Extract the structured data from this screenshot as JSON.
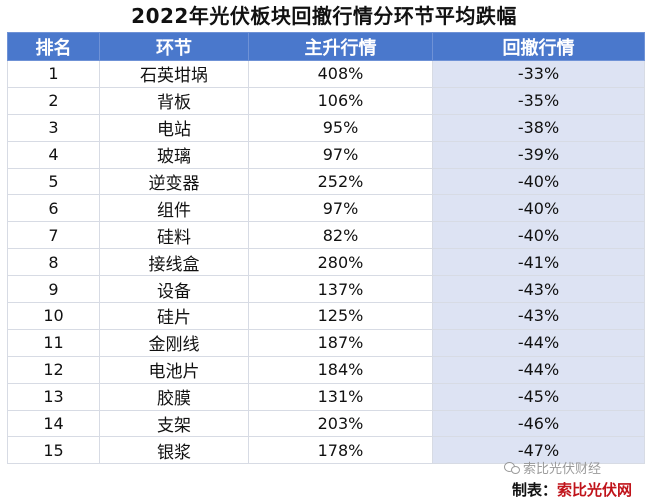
{
  "title": "2022年光伏板块回撤行情分环节平均跌幅",
  "table": {
    "headers": [
      "排名",
      "环节",
      "主升行情",
      "回撤行情"
    ],
    "rows": [
      {
        "rank": "1",
        "segment": "石英坩埚",
        "rise": "408%",
        "drawdown": "-33%"
      },
      {
        "rank": "2",
        "segment": "背板",
        "rise": "106%",
        "drawdown": "-35%"
      },
      {
        "rank": "3",
        "segment": "电站",
        "rise": "95%",
        "drawdown": "-38%"
      },
      {
        "rank": "4",
        "segment": "玻璃",
        "rise": "97%",
        "drawdown": "-39%"
      },
      {
        "rank": "5",
        "segment": "逆变器",
        "rise": "252%",
        "drawdown": "-40%"
      },
      {
        "rank": "6",
        "segment": "组件",
        "rise": "97%",
        "drawdown": "-40%"
      },
      {
        "rank": "7",
        "segment": "硅料",
        "rise": "82%",
        "drawdown": "-40%"
      },
      {
        "rank": "8",
        "segment": "接线盒",
        "rise": "280%",
        "drawdown": "-41%"
      },
      {
        "rank": "9",
        "segment": "设备",
        "rise": "137%",
        "drawdown": "-43%"
      },
      {
        "rank": "10",
        "segment": "硅片",
        "rise": "125%",
        "drawdown": "-43%"
      },
      {
        "rank": "11",
        "segment": "金刚线",
        "rise": "187%",
        "drawdown": "-44%"
      },
      {
        "rank": "12",
        "segment": "电池片",
        "rise": "184%",
        "drawdown": "-44%"
      },
      {
        "rank": "13",
        "segment": "胶膜",
        "rise": "131%",
        "drawdown": "-45%"
      },
      {
        "rank": "14",
        "segment": "支架",
        "rise": "203%",
        "drawdown": "-46%"
      },
      {
        "rank": "15",
        "segment": "银浆",
        "rise": "178%",
        "drawdown": "-47%"
      }
    ]
  },
  "watermark": "索比光伏财经",
  "footer": {
    "prefix": "制表：",
    "brand": "索比光伏网"
  },
  "colors": {
    "header_bg": "#4a78cc",
    "drawdown_bg": "#dde3f3",
    "brand": "#c0131a"
  }
}
